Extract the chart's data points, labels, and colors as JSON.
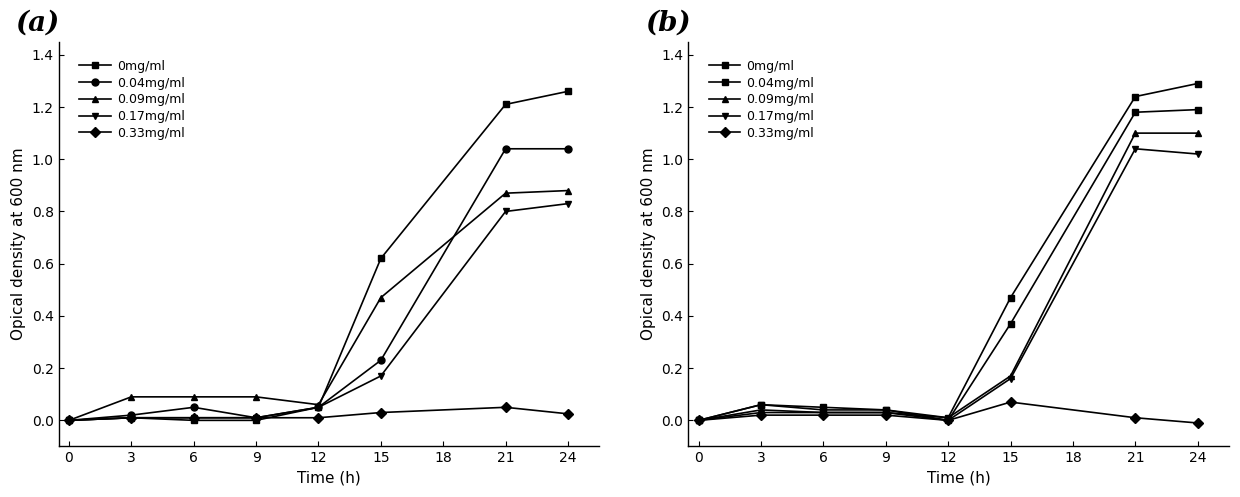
{
  "time_points": [
    0,
    3,
    6,
    9,
    12,
    15,
    18,
    21,
    24
  ],
  "panel_a": {
    "series": [
      {
        "label": "0mg/ml",
        "marker": "s",
        "values": [
          0.0,
          0.01,
          0.0,
          0.0,
          0.05,
          0.62,
          null,
          1.21,
          1.26
        ]
      },
      {
        "label": "0.04mg/ml",
        "marker": "o",
        "values": [
          0.0,
          0.02,
          0.05,
          0.01,
          0.05,
          0.23,
          null,
          1.04,
          1.04
        ]
      },
      {
        "label": "0.09mg/ml",
        "marker": "^",
        "values": [
          0.0,
          0.09,
          0.09,
          0.09,
          0.06,
          0.47,
          null,
          0.87,
          0.88
        ]
      },
      {
        "label": "0.17mg/ml",
        "marker": "v",
        "values": [
          0.0,
          0.01,
          0.01,
          0.01,
          0.05,
          0.17,
          null,
          0.8,
          0.83
        ]
      },
      {
        "label": "0.33mg/ml",
        "marker": "D",
        "values": [
          0.0,
          0.01,
          0.01,
          0.01,
          0.01,
          0.03,
          null,
          0.05,
          0.025
        ]
      }
    ]
  },
  "panel_b": {
    "series": [
      {
        "label": "0mg/ml",
        "marker": "s",
        "values": [
          0.0,
          0.06,
          0.05,
          0.04,
          0.01,
          0.47,
          null,
          1.24,
          1.29
        ]
      },
      {
        "label": "0.04mg/ml",
        "marker": "s",
        "values": [
          0.0,
          0.06,
          0.04,
          0.04,
          0.0,
          0.37,
          null,
          1.18,
          1.19
        ]
      },
      {
        "label": "0.09mg/ml",
        "marker": "^",
        "values": [
          0.0,
          0.04,
          0.03,
          0.03,
          0.01,
          0.17,
          null,
          1.1,
          1.1
        ]
      },
      {
        "label": "0.17mg/ml",
        "marker": "v",
        "values": [
          0.0,
          0.03,
          0.03,
          0.03,
          0.0,
          0.16,
          null,
          1.04,
          1.02
        ]
      },
      {
        "label": "0.33mg/ml",
        "marker": "D",
        "values": [
          0.0,
          0.02,
          0.02,
          0.02,
          0.0,
          0.07,
          null,
          0.01,
          -0.01
        ]
      }
    ]
  },
  "ylabel": "Opical density at 600 nm",
  "xlabel": "Time (h)",
  "ylim": [
    -0.1,
    1.45
  ],
  "yticks": [
    0.0,
    0.2,
    0.4,
    0.6,
    0.8,
    1.0,
    1.2,
    1.4
  ],
  "xticks": [
    0,
    3,
    6,
    9,
    12,
    15,
    18,
    21,
    24
  ],
  "color": "#000000",
  "linewidth": 1.2,
  "markersize": 5,
  "label_a": "(a)",
  "label_b": "(b)"
}
